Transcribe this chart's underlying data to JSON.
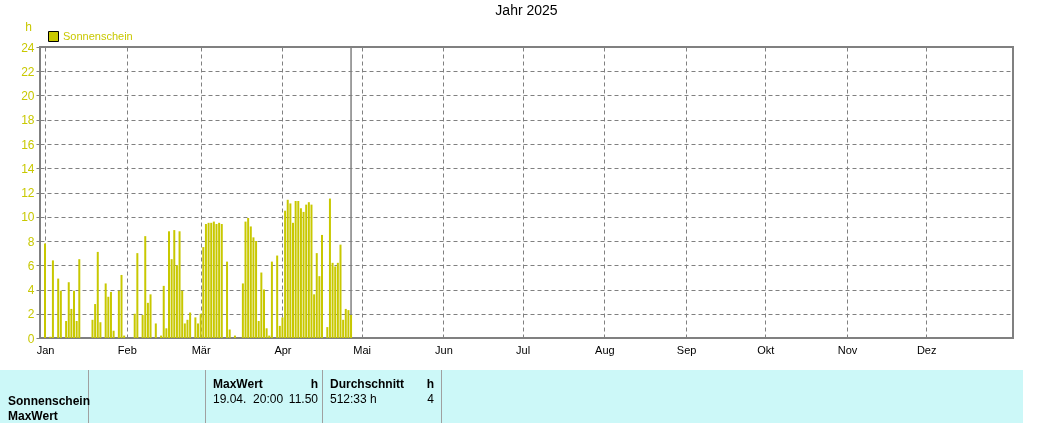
{
  "chart_data": {
    "type": "bar",
    "title": "Jahr 2025",
    "ylabel": "h",
    "xlim": [
      "2025-01-01",
      "2026-01-01"
    ],
    "xticks": [
      {
        "value": "2025-01-01",
        "label": "Jan"
      },
      {
        "value": "2025-02-01",
        "label": "Feb"
      },
      {
        "value": "2025-03-01",
        "label": "Mär"
      },
      {
        "value": "2025-04-01",
        "label": "Apr"
      },
      {
        "value": "2025-05-01",
        "label": "Mai"
      },
      {
        "value": "2025-06-01",
        "label": "Jun"
      },
      {
        "value": "2025-07-01",
        "label": "Jul"
      },
      {
        "value": "2025-08-01",
        "label": "Aug"
      },
      {
        "value": "2025-09-01",
        "label": "Sep"
      },
      {
        "value": "2025-10-01",
        "label": "Okt"
      },
      {
        "value": "2025-11-01",
        "label": "Nov"
      },
      {
        "value": "2025-12-01",
        "label": "Dez"
      }
    ],
    "ylim": [
      0,
      24
    ],
    "yticks": [
      0,
      2,
      4,
      6,
      8,
      10,
      12,
      14,
      16,
      18,
      20,
      22,
      24
    ],
    "grid": true,
    "legend": "top left",
    "ref_lines": [
      {
        "axis": "x",
        "value": "2025-04-27",
        "label": null,
        "color": "#808080"
      }
    ],
    "series": [
      {
        "name": "Sonnenschein",
        "color": "#c8c800",
        "x": [
          "2025-01-01",
          "2025-01-03",
          "2025-01-04",
          "2025-01-06",
          "2025-01-07",
          "2025-01-09",
          "2025-01-10",
          "2025-01-11",
          "2025-01-12",
          "2025-01-13",
          "2025-01-14",
          "2025-01-19",
          "2025-01-20",
          "2025-01-21",
          "2025-01-22",
          "2025-01-24",
          "2025-01-25",
          "2025-01-26",
          "2025-01-27",
          "2025-01-29",
          "2025-01-30",
          "2025-01-31",
          "2025-02-04",
          "2025-02-05",
          "2025-02-07",
          "2025-02-08",
          "2025-02-09",
          "2025-02-10",
          "2025-02-12",
          "2025-02-14",
          "2025-02-15",
          "2025-02-16",
          "2025-02-17",
          "2025-02-18",
          "2025-02-19",
          "2025-02-20",
          "2025-02-21",
          "2025-02-22",
          "2025-02-23",
          "2025-02-24",
          "2025-02-25",
          "2025-02-27",
          "2025-02-28",
          "2025-03-01",
          "2025-03-02",
          "2025-03-03",
          "2025-03-04",
          "2025-03-05",
          "2025-03-06",
          "2025-03-07",
          "2025-03-08",
          "2025-03-09",
          "2025-03-11",
          "2025-03-12",
          "2025-03-14",
          "2025-03-17",
          "2025-03-18",
          "2025-03-19",
          "2025-03-20",
          "2025-03-21",
          "2025-03-22",
          "2025-03-23",
          "2025-03-24",
          "2025-03-25",
          "2025-03-26",
          "2025-03-27",
          "2025-03-28",
          "2025-03-30",
          "2025-03-31",
          "2025-04-01",
          "2025-04-02",
          "2025-04-03",
          "2025-04-04",
          "2025-04-05",
          "2025-04-06",
          "2025-04-07",
          "2025-04-08",
          "2025-04-09",
          "2025-04-10",
          "2025-04-11",
          "2025-04-12",
          "2025-04-13",
          "2025-04-14",
          "2025-04-15",
          "2025-04-16",
          "2025-04-18",
          "2025-04-19",
          "2025-04-20",
          "2025-04-21",
          "2025-04-22",
          "2025-04-23",
          "2025-04-24",
          "2025-04-25",
          "2025-04-26",
          "2025-04-27"
        ],
        "values": [
          7.8,
          0.1,
          6.4,
          4.9,
          3.9,
          1.4,
          4.6,
          2.4,
          3.9,
          1.4,
          6.5,
          1.5,
          2.8,
          7.1,
          1.3,
          4.5,
          3.4,
          3.8,
          0.6,
          3.9,
          5.2,
          0.2,
          2.0,
          7.0,
          1.9,
          8.4,
          2.9,
          3.6,
          1.2,
          0.2,
          4.3,
          0.8,
          8.8,
          6.5,
          8.9,
          6.0,
          8.8,
          3.9,
          1.2,
          1.5,
          2.1,
          1.7,
          1.2,
          2.0,
          7.5,
          9.4,
          9.5,
          9.5,
          9.6,
          9.4,
          9.5,
          9.4,
          6.3,
          0.7,
          0.2,
          4.5,
          9.6,
          9.9,
          9.2,
          8.3,
          8.0,
          1.4,
          5.4,
          4.0,
          0.8,
          0.2,
          6.3,
          6.8,
          1.0,
          1.7,
          10.5,
          11.4,
          11.1,
          9.5,
          11.3,
          11.3,
          10.7,
          10.4,
          11.0,
          11.2,
          11.0,
          3.6,
          7.0,
          5.1,
          8.5,
          0.9,
          11.5,
          6.2,
          5.9,
          6.2,
          7.7,
          1.5,
          2.4,
          2.3,
          1.9
        ]
      }
    ],
    "annotations": [
      "Sonnenschein",
      "MaxWert",
      "MaxWert",
      "h",
      "19.04.  20:00",
      "11.50",
      "Durchschnitt",
      "h",
      "512:33 h",
      "4"
    ]
  }
}
